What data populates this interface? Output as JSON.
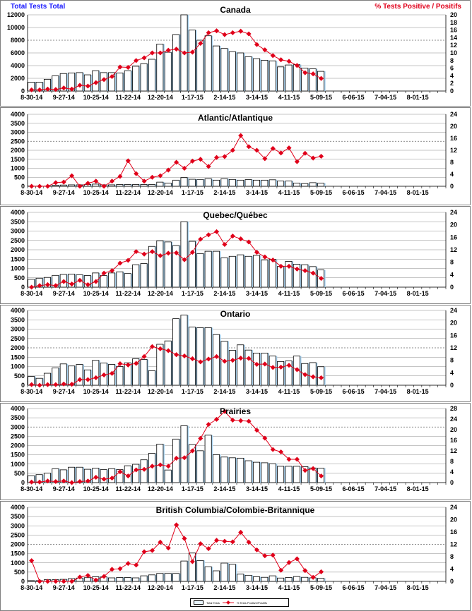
{
  "header": {
    "left_axis_title": "Total Tests Total",
    "right_axis_title": "% Tests Positive / Positifs"
  },
  "legend": {
    "bars": "Total Tests",
    "line": "% Tests Positive/Positifs"
  },
  "colors": {
    "bar_fill": "#ffffff",
    "bar_stroke": "#000000",
    "bar_shade": "#a9d3f0",
    "line": "#e0001a",
    "grid": "#8c8c8c"
  },
  "chart_data": [
    {
      "type": "bar+line",
      "title": "Canada",
      "x_tick_labels": [
        "8-30-14",
        "9-27-14",
        "10-25-14",
        "11-22-14",
        "12-20-14",
        "1-17-15",
        "2-14-15",
        "3-14-15",
        "4-11-15",
        "5-09-15",
        "6-06-15",
        "7-04-15",
        "8-01-15"
      ],
      "ylim_left": [
        0,
        12000
      ],
      "ystep_left": 2000,
      "ylim_right": [
        0,
        20
      ],
      "ystep_right": 2,
      "dotted_grid_at": 8000,
      "series": [
        {
          "name": "Total Tests",
          "values": [
            1400,
            1400,
            1850,
            2400,
            2750,
            2850,
            2900,
            2550,
            3200,
            2900,
            2900,
            2850,
            3200,
            3900,
            4300,
            5000,
            7400,
            6100,
            8900,
            12000,
            9600,
            8000,
            8700,
            7100,
            6700,
            6200,
            6000,
            5400,
            5100,
            4850,
            4750,
            3800,
            4100,
            4150,
            3600,
            3500,
            3100
          ]
        },
        {
          "name": "% Tests Positive",
          "values": [
            0.3,
            0.3,
            0.5,
            0.4,
            0.8,
            0.5,
            1.5,
            1.3,
            2.2,
            3,
            3.8,
            6.3,
            6.2,
            8,
            8.7,
            10,
            10,
            10.7,
            11,
            10,
            10.2,
            12.5,
            15.3,
            15.8,
            14.8,
            15.3,
            15.7,
            15,
            12.2,
            10.8,
            9.3,
            8.2,
            7.8,
            6.7,
            4.8,
            4.5,
            3.3
          ]
        }
      ]
    },
    {
      "type": "bar+line",
      "title": "Atlantic/Atlantique",
      "x_tick_labels": [
        "8-30-14",
        "9-27-14",
        "10-25-14",
        "11-22-14",
        "12-20-14",
        "1-17-15",
        "2-14-15",
        "3-14-15",
        "4-11-15",
        "5-09-15",
        "6-06-15",
        "7-04-15",
        "8-01-15"
      ],
      "ylim_left": [
        0,
        4000
      ],
      "ystep_left": 500,
      "ylim_right": [
        0,
        24
      ],
      "ystep_right": 4,
      "dotted_grid_at": 2500,
      "series": [
        {
          "name": "Total Tests",
          "values": [
            10,
            10,
            10,
            60,
            70,
            80,
            80,
            100,
            120,
            80,
            80,
            100,
            100,
            100,
            100,
            100,
            230,
            180,
            340,
            480,
            390,
            380,
            420,
            340,
            420,
            380,
            340,
            370,
            340,
            340,
            360,
            290,
            290,
            180,
            150,
            200,
            170
          ]
        },
        {
          "name": "% Tests Positive",
          "values": [
            0,
            0,
            0,
            1.2,
            1.4,
            3.5,
            0,
            1,
            1.7,
            0,
            1.7,
            3.3,
            8.5,
            4.2,
            1.7,
            3,
            3.5,
            5.4,
            8,
            6,
            8.4,
            9,
            6.6,
            9.6,
            9.9,
            12,
            16.9,
            13.2,
            12,
            9.2,
            12.6,
            11.1,
            12.8,
            8.2,
            11,
            9.4,
            10
          ]
        }
      ]
    },
    {
      "type": "bar+line",
      "title": "Quebec/Québec",
      "x_tick_labels": [
        "8-30-14",
        "9-27-14",
        "10-25-14",
        "11-22-14",
        "12-20-14",
        "1-17-15",
        "2-14-15",
        "3-14-15",
        "4-11-15",
        "5-09-15",
        "6-06-15",
        "7-04-15",
        "8-01-15"
      ],
      "ylim_left": [
        0,
        4000
      ],
      "ystep_left": 500,
      "ylim_right": [
        0,
        24
      ],
      "ystep_right": 4,
      "dotted_grid_at": null,
      "series": [
        {
          "name": "Total Tests",
          "values": [
            420,
            480,
            520,
            630,
            680,
            700,
            660,
            620,
            760,
            620,
            760,
            820,
            730,
            1200,
            1260,
            2180,
            2480,
            2420,
            2230,
            3500,
            2450,
            1800,
            1920,
            1920,
            1570,
            1650,
            1730,
            1650,
            1700,
            1450,
            1480,
            1110,
            1380,
            1230,
            1200,
            1100,
            920
          ]
        },
        {
          "name": "% Tests Positive",
          "values": [
            0,
            0.5,
            0.8,
            0.5,
            1.8,
            1,
            2.2,
            0.8,
            1.8,
            4.5,
            5.3,
            7.7,
            8.6,
            11.4,
            10.6,
            11.4,
            10.1,
            10.9,
            11,
            8.8,
            11.2,
            15.4,
            16.8,
            17.8,
            13.7,
            16.4,
            15.5,
            14.5,
            11.2,
            9.7,
            8.7,
            6.7,
            6.7,
            5.8,
            5.3,
            4.5,
            2.8
          ]
        }
      ]
    },
    {
      "type": "bar+line",
      "title": "Ontario",
      "x_tick_labels": [
        "8-30-14",
        "9-27-14",
        "10-25-14",
        "11-22-14",
        "12-20-14",
        "1-17-15",
        "2-14-15",
        "3-14-15",
        "4-11-15",
        "5-09-15",
        "6-06-15",
        "7-04-15",
        "8-01-15"
      ],
      "ylim_left": [
        0,
        4000
      ],
      "ystep_left": 500,
      "ylim_right": [
        0,
        24
      ],
      "ystep_right": 4,
      "dotted_grid_at": 2000,
      "series": [
        {
          "name": "Total Tests",
          "values": [
            470,
            370,
            640,
            930,
            1140,
            1030,
            1110,
            820,
            1330,
            1190,
            1110,
            1000,
            1200,
            1420,
            1380,
            780,
            2190,
            2370,
            3560,
            3750,
            3110,
            3080,
            3080,
            2710,
            2350,
            1870,
            2160,
            1880,
            1720,
            1720,
            1560,
            1270,
            1300,
            1560,
            1160,
            1210,
            990
          ]
        },
        {
          "name": "% Tests Positive",
          "values": [
            0.2,
            0,
            0.2,
            0.2,
            0.4,
            0.3,
            1.8,
            1.8,
            2.4,
            3.3,
            3.8,
            6.9,
            6.5,
            7,
            9.2,
            12.4,
            11.7,
            11.1,
            9.8,
            9.4,
            8.5,
            7.5,
            8.4,
            9.2,
            7.7,
            8,
            8.7,
            8.6,
            6.7,
            6.8,
            5.7,
            5.8,
            6.4,
            5,
            3.4,
            2.7,
            2.4
          ]
        }
      ]
    },
    {
      "type": "bar+line",
      "title": "Prairies",
      "x_tick_labels": [
        "8-30-14",
        "9-27-14",
        "10-25-14",
        "11-22-14",
        "12-20-14",
        "1-17-15",
        "2-14-15",
        "3-14-15",
        "4-11-15",
        "5-09-15",
        "6-06-15",
        "7-04-15",
        "8-01-15"
      ],
      "ylim_left": [
        0,
        4000
      ],
      "ystep_left": 500,
      "ylim_right": [
        0,
        28
      ],
      "ystep_right": 4,
      "dotted_grid_at": 3000,
      "series": [
        {
          "name": "Total Tests",
          "values": [
            370,
            430,
            510,
            750,
            690,
            830,
            830,
            720,
            780,
            700,
            750,
            700,
            910,
            990,
            1230,
            1580,
            2080,
            680,
            2350,
            3070,
            2050,
            1720,
            2560,
            1510,
            1380,
            1340,
            1320,
            1180,
            1100,
            1070,
            1020,
            880,
            880,
            880,
            860,
            790,
            780
          ]
        },
        {
          "name": "% Tests Positive",
          "values": [
            0.2,
            0.2,
            0.6,
            0.4,
            0.6,
            0,
            0.4,
            0.6,
            2,
            1.3,
            1.7,
            4.1,
            2.5,
            4.8,
            5,
            6.2,
            6.7,
            6.2,
            9.2,
            9.4,
            12,
            16.7,
            22,
            23.9,
            26.9,
            23.6,
            23.4,
            23.2,
            19.8,
            16.8,
            12.5,
            11.6,
            8.8,
            8.8,
            4.6,
            5.3,
            2.5
          ]
        }
      ]
    },
    {
      "type": "bar+line",
      "title": "British Columbia/Colombie-Britannique",
      "x_tick_labels": [
        "8-30-14",
        "9-27-14",
        "10-25-14",
        "11-22-14",
        "12-20-14",
        "1-17-15",
        "2-14-15",
        "3-14-15",
        "4-11-15",
        "5-09-15",
        "6-06-15",
        "7-04-15",
        "8-01-15"
      ],
      "ylim_left": [
        0,
        4000
      ],
      "ystep_left": 500,
      "ylim_right": [
        0,
        24
      ],
      "ystep_right": 4,
      "dotted_grid_at": 2000,
      "series": [
        {
          "name": "Total Tests",
          "values": [
            40,
            40,
            90,
            90,
            110,
            150,
            180,
            200,
            250,
            240,
            190,
            210,
            210,
            190,
            300,
            350,
            430,
            430,
            430,
            1100,
            1530,
            1130,
            790,
            570,
            990,
            920,
            390,
            330,
            250,
            220,
            300,
            180,
            210,
            260,
            220,
            190,
            170
          ]
        },
        {
          "name": "% Tests Positive",
          "values": [
            6.7,
            0,
            0,
            0,
            0,
            0,
            1.4,
            1.9,
            0.4,
            1.6,
            3.9,
            4.1,
            5.8,
            5.3,
            9.6,
            10,
            12.7,
            10.8,
            18.3,
            13.9,
            6.4,
            12.2,
            10.6,
            13.3,
            13,
            12.8,
            15.9,
            12.7,
            10.2,
            8.3,
            8.5,
            3.6,
            6.1,
            7.3,
            3.5,
            1.3,
            3.1
          ]
        }
      ]
    }
  ]
}
